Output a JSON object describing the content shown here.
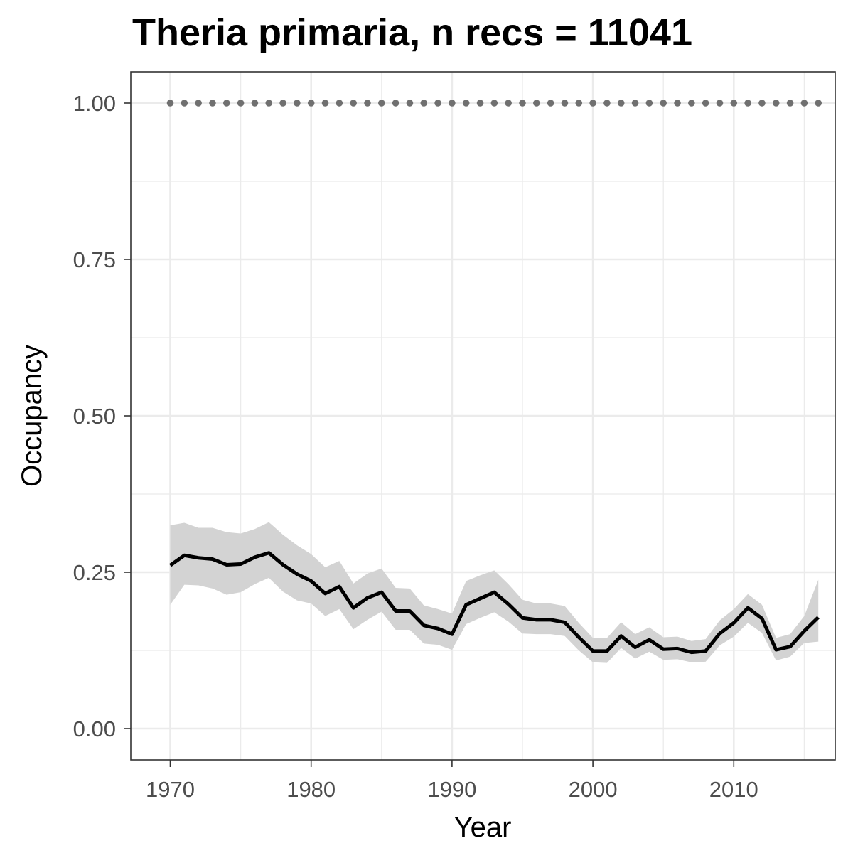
{
  "chart_data": {
    "type": "line",
    "title": "Theria primaria, n recs = 11041",
    "xlabel": "Year",
    "ylabel": "Occupancy",
    "xlim": [
      1967.2,
      2017.2
    ],
    "ylim": [
      -0.05,
      1.05
    ],
    "x_ticks": [
      {
        "value": 1970,
        "label": "1970"
      },
      {
        "value": 1980,
        "label": "1980"
      },
      {
        "value": 1990,
        "label": "1990"
      },
      {
        "value": 2000,
        "label": "2000"
      },
      {
        "value": 2010,
        "label": "2010"
      }
    ],
    "y_ticks": [
      {
        "value": 0.0,
        "label": "0.00"
      },
      {
        "value": 0.25,
        "label": "0.25"
      },
      {
        "value": 0.5,
        "label": "0.50"
      },
      {
        "value": 0.75,
        "label": "0.75"
      },
      {
        "value": 1.0,
        "label": "1.00"
      }
    ],
    "y_minor_ticks": [
      0.125,
      0.375,
      0.625,
      0.875
    ],
    "x_minor_ticks": [
      1975,
      1985,
      1995,
      2005,
      2015
    ],
    "grid": true,
    "legend": "none",
    "colors": {
      "line": "#000000",
      "ribbon": "#d3d3d3",
      "reference_dots": "#707070",
      "grid": "#ebebeb",
      "panel_border": "#333333",
      "tick_label": "#4d4d4d"
    },
    "series": [
      {
        "role": "estimate",
        "x": [
          1970,
          1971,
          1972,
          1973,
          1974,
          1975,
          1976,
          1977,
          1978,
          1979,
          1980,
          1981,
          1982,
          1983,
          1984,
          1985,
          1986,
          1987,
          1988,
          1989,
          1990,
          1991,
          1992,
          1993,
          1994,
          1995,
          1996,
          1997,
          1998,
          1999,
          2000,
          2001,
          2002,
          2003,
          2004,
          2005,
          2006,
          2007,
          2008,
          2009,
          2010,
          2011,
          2012,
          2013,
          2014,
          2015,
          2016
        ],
        "values": [
          0.261,
          0.277,
          0.273,
          0.271,
          0.262,
          0.263,
          0.274,
          0.281,
          0.262,
          0.247,
          0.236,
          0.216,
          0.227,
          0.193,
          0.209,
          0.218,
          0.188,
          0.188,
          0.165,
          0.16,
          0.151,
          0.198,
          0.208,
          0.218,
          0.199,
          0.177,
          0.174,
          0.174,
          0.17,
          0.146,
          0.124,
          0.124,
          0.148,
          0.13,
          0.142,
          0.127,
          0.128,
          0.122,
          0.124,
          0.152,
          0.169,
          0.193,
          0.176,
          0.126,
          0.131,
          0.156,
          0.178
        ],
        "lower": [
          0.198,
          0.23,
          0.229,
          0.224,
          0.214,
          0.218,
          0.231,
          0.241,
          0.219,
          0.205,
          0.2,
          0.18,
          0.191,
          0.159,
          0.174,
          0.187,
          0.158,
          0.158,
          0.136,
          0.134,
          0.126,
          0.167,
          0.177,
          0.186,
          0.171,
          0.152,
          0.151,
          0.151,
          0.148,
          0.125,
          0.106,
          0.105,
          0.129,
          0.112,
          0.123,
          0.11,
          0.111,
          0.106,
          0.107,
          0.133,
          0.147,
          0.169,
          0.153,
          0.109,
          0.115,
          0.137,
          0.139
        ],
        "upper": [
          0.325,
          0.329,
          0.321,
          0.321,
          0.314,
          0.312,
          0.319,
          0.33,
          0.31,
          0.293,
          0.279,
          0.258,
          0.268,
          0.232,
          0.248,
          0.256,
          0.225,
          0.224,
          0.197,
          0.191,
          0.184,
          0.236,
          0.245,
          0.253,
          0.231,
          0.206,
          0.2,
          0.2,
          0.196,
          0.169,
          0.145,
          0.145,
          0.17,
          0.151,
          0.162,
          0.146,
          0.147,
          0.14,
          0.143,
          0.173,
          0.191,
          0.215,
          0.198,
          0.145,
          0.151,
          0.18,
          0.238
        ]
      },
      {
        "role": "reference",
        "style": "dotted",
        "x": [
          1970,
          1971,
          1972,
          1973,
          1974,
          1975,
          1976,
          1977,
          1978,
          1979,
          1980,
          1981,
          1982,
          1983,
          1984,
          1985,
          1986,
          1987,
          1988,
          1989,
          1990,
          1991,
          1992,
          1993,
          1994,
          1995,
          1996,
          1997,
          1998,
          1999,
          2000,
          2001,
          2002,
          2003,
          2004,
          2005,
          2006,
          2007,
          2008,
          2009,
          2010,
          2011,
          2012,
          2013,
          2014,
          2015,
          2016
        ],
        "values": [
          1,
          1,
          1,
          1,
          1,
          1,
          1,
          1,
          1,
          1,
          1,
          1,
          1,
          1,
          1,
          1,
          1,
          1,
          1,
          1,
          1,
          1,
          1,
          1,
          1,
          1,
          1,
          1,
          1,
          1,
          1,
          1,
          1,
          1,
          1,
          1,
          1,
          1,
          1,
          1,
          1,
          1,
          1,
          1,
          1,
          1,
          1
        ]
      }
    ]
  }
}
